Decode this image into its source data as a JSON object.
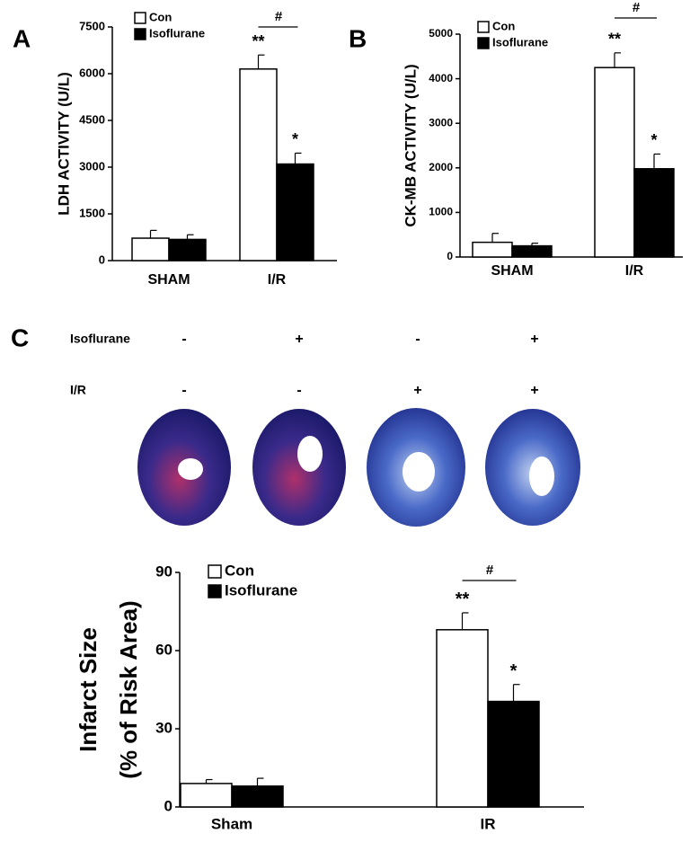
{
  "panel_labels": [
    "A",
    "B",
    "C"
  ],
  "treatments": [
    {
      "label": "Isoflurane",
      "marks": [
        "-",
        "+",
        "-",
        "+"
      ]
    },
    {
      "label": "I/R",
      "marks": [
        "-",
        "-",
        "+",
        "+"
      ]
    }
  ],
  "chart_data": [
    {
      "type": "bar",
      "ylabel": [
        "LDH ACTIVITY (U/L)"
      ],
      "categories": [
        "SHAM",
        "I/R"
      ],
      "series": [
        {
          "name": "Con",
          "color": "#ffffff",
          "values": [
            720,
            6150
          ],
          "errors": [
            250,
            450
          ],
          "significance": [
            null,
            "**"
          ]
        },
        {
          "name": "Isoflurane",
          "color": "#000000",
          "values": [
            680,
            3100
          ],
          "errors": [
            150,
            350
          ],
          "significance": [
            null,
            "*"
          ]
        }
      ],
      "comparison": "#",
      "ylim": [
        0,
        7500
      ],
      "yticks": [
        0,
        1500,
        3000,
        4500,
        6000,
        7500
      ]
    },
    {
      "type": "bar",
      "ylabel": [
        "CK-MB ACTIVITY (U/L)"
      ],
      "categories": [
        "SHAM",
        "I/R"
      ],
      "series": [
        {
          "name": "Con",
          "color": "#ffffff",
          "values": [
            330,
            4250
          ],
          "errors": [
            200,
            330
          ],
          "significance": [
            null,
            "**"
          ]
        },
        {
          "name": "Isoflurane",
          "color": "#000000",
          "values": [
            250,
            1980
          ],
          "errors": [
            60,
            330
          ],
          "significance": [
            null,
            "*"
          ]
        }
      ],
      "comparison": "#",
      "ylim": [
        0,
        5000
      ],
      "yticks": [
        0,
        1000,
        2000,
        3000,
        4000,
        5000
      ]
    },
    {
      "type": "bar",
      "ylabel": [
        "Infarct Size",
        "(% of Risk Area)"
      ],
      "categories": [
        "Sham",
        "IR"
      ],
      "series": [
        {
          "name": "Con",
          "color": "#ffffff",
          "values": [
            9,
            68
          ],
          "errors": [
            1.5,
            6.5
          ],
          "significance": [
            null,
            "**"
          ]
        },
        {
          "name": "Isoflurane",
          "color": "#000000",
          "values": [
            8,
            40.5
          ],
          "errors": [
            3,
            6.5
          ],
          "significance": [
            null,
            "*"
          ]
        }
      ],
      "comparison": "#",
      "ylim": [
        0,
        90
      ],
      "yticks": [
        0,
        30,
        60,
        90
      ]
    }
  ]
}
